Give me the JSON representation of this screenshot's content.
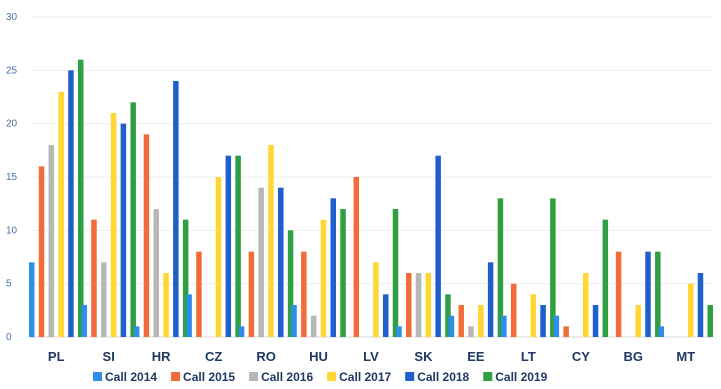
{
  "chart_data": {
    "type": "bar",
    "title": "",
    "xlabel": "",
    "ylabel": "",
    "ylim": [
      0,
      30
    ],
    "yticks": [
      0,
      5,
      10,
      15,
      20,
      25,
      30
    ],
    "ytick_labels": [
      "0",
      "5",
      "10",
      "15",
      "20",
      "25",
      "30"
    ],
    "grid": true,
    "legend_position": "bottom",
    "categories": [
      "PL",
      "SI",
      "HR",
      "CZ",
      "RO",
      "HU",
      "LV",
      "SK",
      "EE",
      "LT",
      "CY",
      "BG",
      "MT"
    ],
    "series": [
      {
        "name": "Call 2014",
        "color": "#2e8ee8",
        "values": [
          7,
          3,
          1,
          4,
          1,
          3,
          0,
          1,
          2,
          2,
          2,
          0,
          1
        ]
      },
      {
        "name": "Call 2015",
        "color": "#f26b38",
        "values": [
          16,
          11,
          19,
          8,
          8,
          8,
          15,
          6,
          3,
          5,
          1,
          8,
          0
        ]
      },
      {
        "name": "Call 2016",
        "color": "#b7b7b7",
        "values": [
          18,
          7,
          12,
          0,
          14,
          2,
          0,
          6,
          1,
          0,
          0,
          0,
          0
        ]
      },
      {
        "name": "Call 2017",
        "color": "#ffd633",
        "values": [
          23,
          21,
          6,
          15,
          18,
          11,
          7,
          6,
          3,
          4,
          6,
          3,
          5
        ]
      },
      {
        "name": "Call 2018",
        "color": "#1f5fcc",
        "values": [
          25,
          20,
          24,
          17,
          14,
          13,
          4,
          17,
          7,
          3,
          3,
          8,
          6
        ]
      },
      {
        "name": "Call 2019",
        "color": "#2ea043",
        "values": [
          26,
          22,
          11,
          17,
          10,
          12,
          12,
          4,
          13,
          13,
          11,
          8,
          3
        ]
      }
    ]
  }
}
